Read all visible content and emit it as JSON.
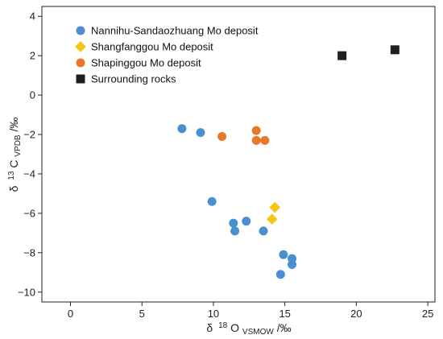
{
  "chart_data": {
    "type": "scatter",
    "xlabel": {
      "prefix": "δ",
      "sup": "18",
      "main": "O",
      "sub": "VSMOW",
      "suffix": "/‰"
    },
    "ylabel": {
      "prefix": "δ",
      "sup": "13",
      "main": "C",
      "sub": "VPDB",
      "suffix": "/‰"
    },
    "xlim": [
      -2,
      25.5
    ],
    "ylim": [
      -10.5,
      4.5
    ],
    "xticks": [
      0,
      5,
      10,
      15,
      20,
      25
    ],
    "yticks": [
      4,
      2,
      0,
      -2,
      -4,
      -6,
      -8,
      -10
    ],
    "xtick_labels": [
      "0",
      "5",
      "10",
      "15",
      "20",
      "25"
    ],
    "ytick_labels": [
      "4",
      "2",
      "0",
      "−2",
      "−4",
      "−6",
      "−8",
      "−10"
    ],
    "legend_position": "top-left",
    "grid": false,
    "series": [
      {
        "name": "Nannihu-Sandaozhuang Mo deposit",
        "marker": "circle",
        "color": "#4a90d0",
        "points": [
          {
            "x": 7.8,
            "y": -1.7
          },
          {
            "x": 9.1,
            "y": -1.9
          },
          {
            "x": 9.9,
            "y": -5.4
          },
          {
            "x": 11.4,
            "y": -6.5
          },
          {
            "x": 11.5,
            "y": -6.9
          },
          {
            "x": 12.3,
            "y": -6.4
          },
          {
            "x": 13.5,
            "y": -6.9
          },
          {
            "x": 14.9,
            "y": -8.1
          },
          {
            "x": 15.5,
            "y": -8.3
          },
          {
            "x": 15.5,
            "y": -8.6
          },
          {
            "x": 14.7,
            "y": -9.1
          }
        ]
      },
      {
        "name": "Shangfanggou Mo deposit",
        "marker": "diamond",
        "color": "#f5c518",
        "points": [
          {
            "x": 14.3,
            "y": -5.7
          },
          {
            "x": 14.1,
            "y": -6.3
          }
        ]
      },
      {
        "name": "Shapinggou Mo deposit",
        "marker": "circle",
        "color": "#e8792a",
        "points": [
          {
            "x": 10.6,
            "y": -2.1
          },
          {
            "x": 13.0,
            "y": -1.8
          },
          {
            "x": 13.0,
            "y": -2.3
          },
          {
            "x": 13.6,
            "y": -2.3
          }
        ]
      },
      {
        "name": "Surrounding rocks",
        "marker": "square",
        "color": "#231f20",
        "points": [
          {
            "x": 19.0,
            "y": 2.0
          },
          {
            "x": 22.7,
            "y": 2.3
          }
        ]
      }
    ]
  }
}
